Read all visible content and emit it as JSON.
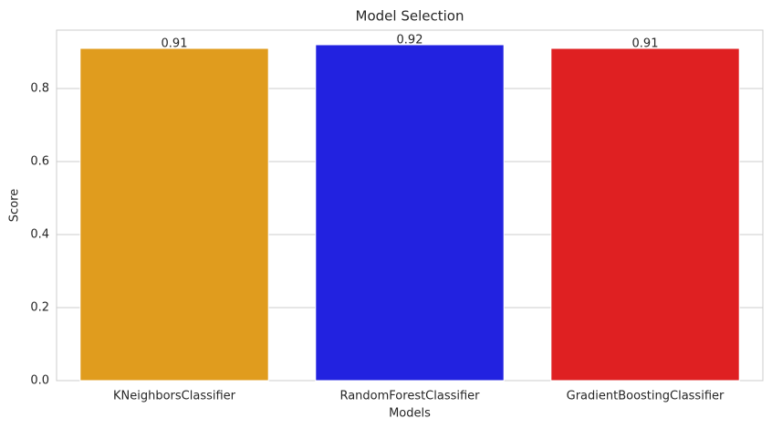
{
  "chart_data": {
    "type": "bar",
    "title": "Model Selection",
    "x_label": "Models",
    "y_label": "Score",
    "categories": [
      "KNeighborsClassifier",
      "RandomForestClassifier",
      "GradientBoostingClassifier"
    ],
    "values": [
      0.91,
      0.92,
      0.91
    ],
    "colors": [
      "#e09c1e",
      "#2222e0",
      "#df2022"
    ],
    "ylim": [
      0,
      0.96
    ],
    "yticks": [
      {
        "value": 0,
        "label": "0.0"
      },
      0.2,
      0.4,
      0.6,
      0.8
    ],
    "grid": true
  }
}
